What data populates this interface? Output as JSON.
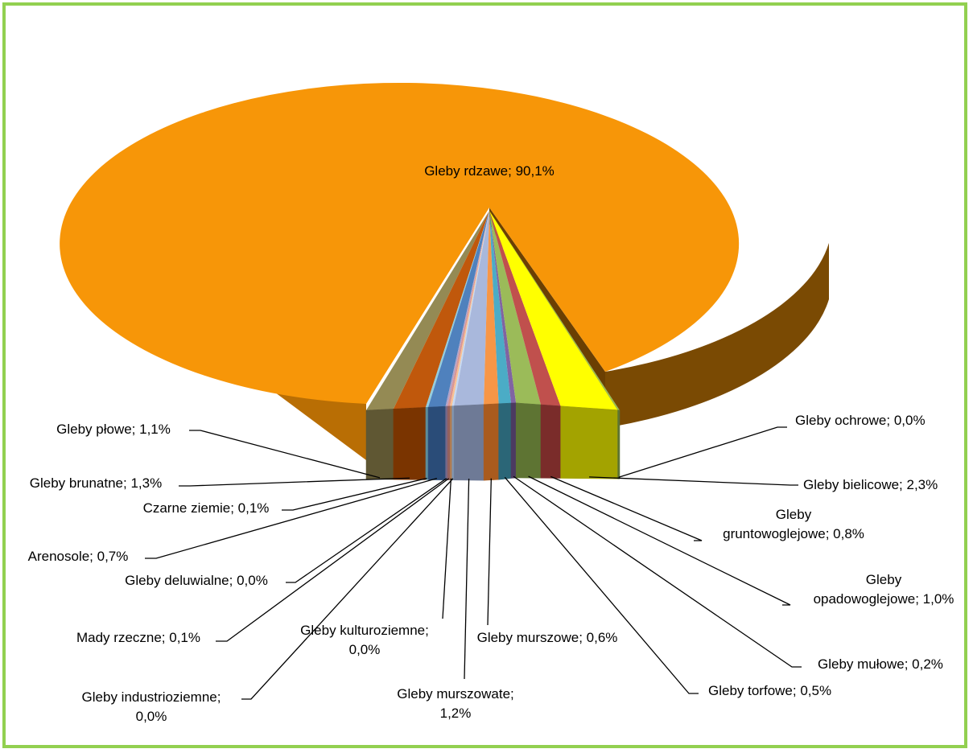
{
  "chart_data": {
    "type": "pie",
    "style": "3d-exploded",
    "title": "",
    "slices": [
      {
        "name": "Gleby rdzawe",
        "value": 90.1,
        "label": "Gleby rdzawe; 90,1%",
        "color": "#F79608",
        "side": "#B96E04"
      },
      {
        "name": "Gleby ochrowe",
        "value": 0.0,
        "label": "Gleby ochrowe; 0,0%",
        "color": "#9BBB59",
        "side": "#5E7433"
      },
      {
        "name": "Gleby bielicowe",
        "value": 2.3,
        "label": "Gleby bielicowe; 2,3%",
        "color": "#FFFF00",
        "side": "#A3A300"
      },
      {
        "name": "Gleby gruntowoglejowe",
        "value": 0.8,
        "label": "Gleby gruntowoglejowe; 0,8%",
        "color": "#C0504D",
        "side": "#7A2C2A"
      },
      {
        "name": "Gleby opadowoglejowe",
        "value": 1.0,
        "label": "Gleby opadowoglejowe; 1,0%",
        "color": "#9BBB59",
        "side": "#5E7433"
      },
      {
        "name": "Gleby mułowe",
        "value": 0.2,
        "label": "Gleby mułowe; 0,2%",
        "color": "#8064A2",
        "side": "#4C3A61"
      },
      {
        "name": "Gleby torfowe",
        "value": 0.5,
        "label": "Gleby torfowe; 0,5%",
        "color": "#4BACC6",
        "side": "#2B6677"
      },
      {
        "name": "Gleby murszowe",
        "value": 0.6,
        "label": "Gleby murszowe; 0,6%",
        "color": "#F79646",
        "side": "#A95B1E"
      },
      {
        "name": "Gleby murszowate",
        "value": 1.2,
        "label": "Gleby murszowate; 1,2%",
        "color": "#A9B8DC",
        "side": "#6E7A96"
      },
      {
        "name": "Gleby industrioziemne",
        "value": 0.0,
        "label": "Gleby industrioziemne; 0,0%",
        "color": "#C6D9F1",
        "side": "#8196B1"
      },
      {
        "name": "Gleby kulturoziemne",
        "value": 0.0,
        "label": "Gleby kulturoziemne; 0,0%",
        "color": "#FAC090",
        "side": "#B07C52"
      },
      {
        "name": "Mady rzeczne",
        "value": 0.1,
        "label": "Mady rzeczne; 0,1%",
        "color": "#D99694",
        "side": "#93605E"
      },
      {
        "name": "Gleby deluwialne",
        "value": 0.0,
        "label": "Gleby deluwialne; 0,0%",
        "color": "#B3A2C7",
        "side": "#75688A"
      },
      {
        "name": "Arenosole",
        "value": 0.7,
        "label": "Arenosole; 0,7%",
        "color": "#4F81BD",
        "side": "#2A4C78"
      },
      {
        "name": "Czarne ziemie",
        "value": 0.1,
        "label": "Czarne ziemie; 0,1%",
        "color": "#93CDDD",
        "side": "#5B8C99"
      },
      {
        "name": "Gleby brunatne",
        "value": 1.3,
        "label": "Gleby brunatne; 1,3%",
        "color": "#C0580C",
        "side": "#7A3400"
      },
      {
        "name": "Gleby płowe",
        "value": 1.1,
        "label": "Gleby płowe; 1,1%",
        "color": "#948A54",
        "side": "#5F5733"
      }
    ],
    "label_lines": {
      "Gleby rdzawe": [
        "Gleby rdzawe; 90,1%"
      ],
      "Gleby ochrowe": [
        "Gleby ochrowe; 0,0%"
      ],
      "Gleby bielicowe": [
        "Gleby bielicowe; 2,3%"
      ],
      "Gleby gruntowoglejowe": [
        "Gleby",
        "gruntowoglejowe; 0,8%"
      ],
      "Gleby opadowoglejowe": [
        "Gleby",
        "opadowoglejowe; 1,0%"
      ],
      "Gleby mułowe": [
        "Gleby mułowe; 0,2%"
      ],
      "Gleby torfowe": [
        "Gleby torfowe; 0,5%"
      ],
      "Gleby murszowe": [
        "Gleby murszowe; 0,6%"
      ],
      "Gleby murszowate": [
        "Gleby murszowate;",
        "1,2%"
      ],
      "Gleby industrioziemne": [
        "Gleby industrioziemne;",
        "0,0%"
      ],
      "Gleby kulturoziemne": [
        "Gleby kulturoziemne;",
        "0,0%"
      ],
      "Mady rzeczne": [
        "Mady rzeczne; 0,1%"
      ],
      "Gleby deluwialne": [
        "Gleby deluwialne; 0,0%"
      ],
      "Arenosole": [
        "Arenosole; 0,7%"
      ],
      "Czarne ziemie": [
        "Czarne ziemie; 0,1%"
      ],
      "Gleby brunatne": [
        "Gleby brunatne; 1,3%"
      ],
      "Gleby płowe": [
        "Gleby płowe; 1,1%"
      ]
    },
    "border_color": "#92D050"
  }
}
